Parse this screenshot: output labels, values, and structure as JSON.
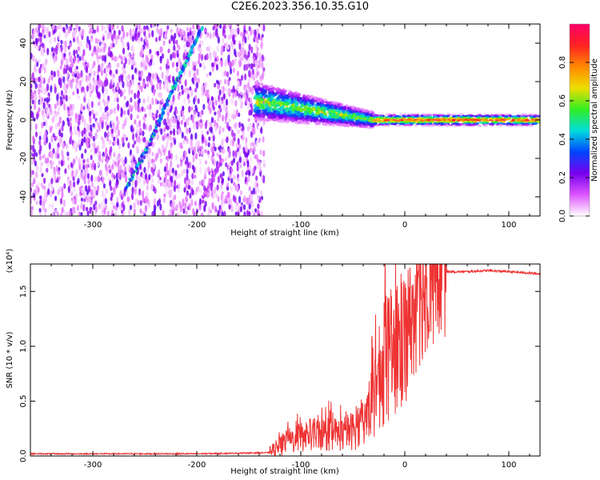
{
  "title": "C2E6.2023.356.10.35.G10",
  "colors": {
    "line": "#ee3333",
    "axis": "#000000",
    "colorbar": [
      "#ff0066",
      "#ff2222",
      "#ff8800",
      "#eedd00",
      "#33ee22",
      "#00dddd",
      "#0044ff",
      "#7700ee",
      "#dd55ff",
      "#ffffff"
    ]
  },
  "chart_data": [
    {
      "type": "heatmap",
      "xlabel": "Height of straight line (km)",
      "ylabel": "Frequency (Hz)",
      "xlim": [
        -360,
        130
      ],
      "ylim": [
        -50,
        50
      ],
      "xticks": [
        -300,
        -200,
        -100,
        0,
        100
      ],
      "yticks": [
        -40,
        -20,
        0,
        20,
        40
      ],
      "colorbar": {
        "label": "Normalized spectral amplitude",
        "range": [
          0.0,
          1.0
        ],
        "ticks": [
          "0.0",
          "0.2",
          "0.4",
          "0.6",
          "0.8"
        ]
      },
      "features": [
        {
          "name": "scattered noise",
          "x_range": [
            -360,
            -135
          ],
          "y_range": [
            -50,
            50
          ],
          "amplitude": 0.15
        },
        {
          "name": "diagonal streak",
          "x": [
            -268,
            -245,
            -228,
            -212,
            -195
          ],
          "y": [
            -36,
            -12,
            10,
            28,
            48
          ],
          "amplitude": 0.35
        },
        {
          "name": "lower streak",
          "x": [
            -195,
            -175
          ],
          "y": [
            -42,
            -20
          ],
          "amplitude": 0.12
        },
        {
          "name": "transition band",
          "x_range": [
            -145,
            -30
          ],
          "y_center": [
            10,
            0
          ],
          "amplitude": 0.45
        },
        {
          "name": "steady line",
          "x_range": [
            -30,
            130
          ],
          "y": 0,
          "amplitude": 0.9
        }
      ]
    },
    {
      "type": "line",
      "xlabel": "Height of straight line (km)",
      "ylabel": "SNR (10 * v/v)",
      "multiplier": "(x10⁴)",
      "xlim": [
        -360,
        130
      ],
      "ylim": [
        0,
        1.75
      ],
      "xticks": [
        -300,
        -200,
        -100,
        0,
        100
      ],
      "yticks": [
        "0.0",
        "0.5",
        "1.0",
        "1.5"
      ],
      "series": [
        {
          "x": [
            -360,
            -300,
            -200,
            -130,
            -115,
            -100,
            -80,
            -60,
            -45,
            -35,
            -25,
            -15,
            -5,
            0,
            5,
            10,
            20,
            30,
            40,
            60,
            80,
            100,
            130
          ],
          "y": [
            0.02,
            0.02,
            0.02,
            0.03,
            0.12,
            0.18,
            0.2,
            0.2,
            0.25,
            0.4,
            0.7,
            0.9,
            1.0,
            1.1,
            1.2,
            1.35,
            1.55,
            1.65,
            1.68,
            1.68,
            1.69,
            1.68,
            1.66
          ]
        }
      ]
    }
  ]
}
